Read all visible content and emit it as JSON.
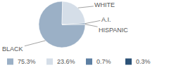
{
  "chart_data": {
    "type": "pie",
    "categories": [
      "BLACK",
      "WHITE",
      "A.I.",
      "HISPANIC"
    ],
    "values": [
      75.3,
      23.6,
      0.7,
      0.3
    ],
    "value_labels": [
      "75.3%",
      "23.6%",
      "0.7%",
      "0.3%"
    ],
    "colors": [
      "#9bb0c6",
      "#d5dee8",
      "#5d7fa2",
      "#2c5277"
    ],
    "legend": "bottom"
  }
}
